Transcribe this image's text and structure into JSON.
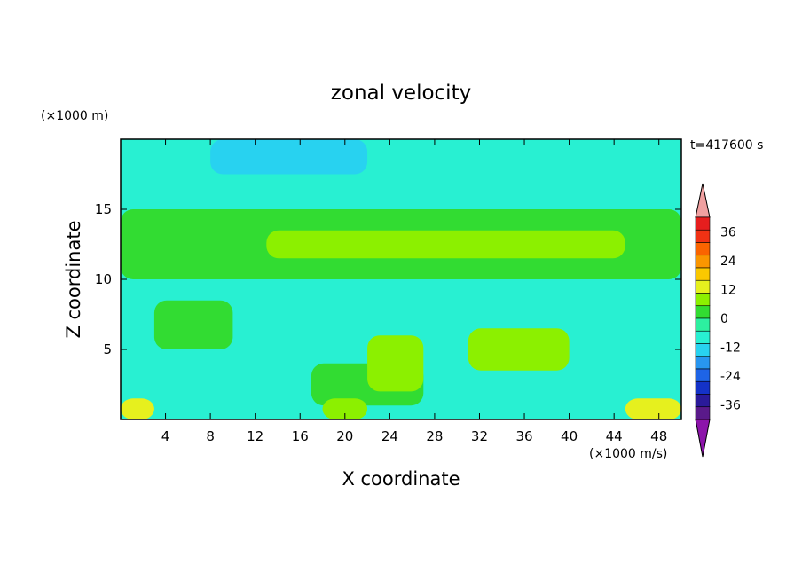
{
  "chart_data": {
    "type": "heatmap",
    "title": "zonal velocity",
    "time_label": "t=417600 s",
    "xlabel": "X coordinate",
    "ylabel": "Z coordinate",
    "x_unit": "(×1000 m/s)",
    "y_unit": "(×1000 m)",
    "xlim": [
      0,
      50
    ],
    "ylim": [
      0,
      20
    ],
    "x_ticks": [
      4,
      8,
      12,
      16,
      20,
      24,
      28,
      32,
      36,
      40,
      44,
      48
    ],
    "y_ticks": [
      5,
      10,
      15
    ],
    "colorbar": {
      "levels": [
        -42,
        -36,
        -30,
        -24,
        -18,
        -12,
        -6,
        0,
        6,
        12,
        18,
        24,
        30,
        36,
        42
      ],
      "tick_labels": [
        "36",
        "24",
        "12",
        "0",
        "-12",
        "-24",
        "-36"
      ],
      "tick_values": [
        36,
        24,
        12,
        0,
        -12,
        -24,
        -36
      ],
      "colors": [
        "#5a1a8a",
        "#2a1a9a",
        "#1432c8",
        "#1e64e6",
        "#2896f0",
        "#28d2f0",
        "#28f0d2",
        "#2df0a0",
        "#32dc32",
        "#8cf000",
        "#e6f01e",
        "#fac800",
        "#fa9600",
        "#fa6400",
        "#f03214",
        "#e61e1e"
      ],
      "under_color": "#8c14aa",
      "over_color": "#f0a0a0"
    },
    "field_description_levels": "velocity field mostly between -12 and 12",
    "regions": [
      {
        "x": [
          0,
          50
        ],
        "z": [
          0,
          20
        ],
        "value": -8
      },
      {
        "x": [
          8,
          22
        ],
        "z": [
          17.5,
          20
        ],
        "value": -14
      },
      {
        "x": [
          0,
          50
        ],
        "z": [
          10,
          15
        ],
        "value": 3
      },
      {
        "x": [
          13,
          45
        ],
        "z": [
          11.5,
          13.5
        ],
        "value": 8
      },
      {
        "x": [
          3,
          10
        ],
        "z": [
          5,
          8.5
        ],
        "value": 4
      },
      {
        "x": [
          17,
          27
        ],
        "z": [
          1,
          4
        ],
        "value": 5
      },
      {
        "x": [
          22,
          27
        ],
        "z": [
          2,
          6
        ],
        "value": 8
      },
      {
        "x": [
          31,
          40
        ],
        "z": [
          3.5,
          6.5
        ],
        "value": 8
      },
      {
        "x": [
          0,
          3
        ],
        "z": [
          0,
          1.5
        ],
        "value": 12
      },
      {
        "x": [
          45,
          50
        ],
        "z": [
          0,
          1.5
        ],
        "value": 12
      },
      {
        "x": [
          18,
          22
        ],
        "z": [
          0,
          1.5
        ],
        "value": 10
      }
    ]
  }
}
